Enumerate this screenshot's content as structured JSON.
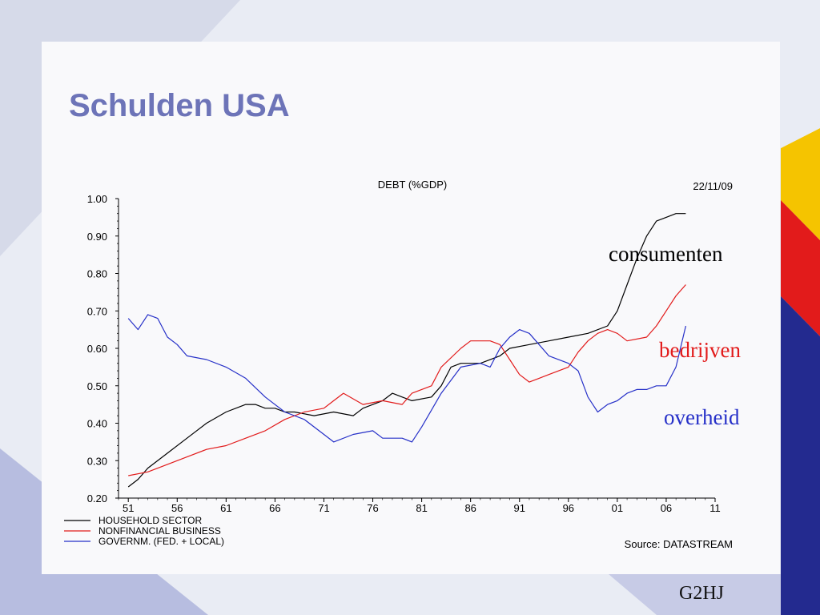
{
  "slide": {
    "title": "Schulden USA",
    "footer": "G2HJ",
    "colors": {
      "title": "#6d74b8",
      "background": "#e9ecf4",
      "accent_yellow": "#f5c400",
      "accent_red": "#e21b1b",
      "accent_blue": "#232a8f"
    }
  },
  "annotations": {
    "household": "consumenten",
    "business": "bedrijven",
    "government": "overheid"
  },
  "chart_data": {
    "type": "line",
    "title": "DEBT (%GDP)",
    "date": "22/11/09",
    "source": "Source: DATASTREAM",
    "xlabel": "",
    "ylabel": "",
    "xlim": [
      1950,
      2011
    ],
    "ylim": [
      0.2,
      1.0
    ],
    "x_ticks": [
      51,
      56,
      61,
      66,
      71,
      76,
      81,
      86,
      91,
      96,
      1,
      6,
      11
    ],
    "x_tick_labels": [
      "51",
      "56",
      "61",
      "66",
      "71",
      "76",
      "81",
      "86",
      "91",
      "96",
      "01",
      "06",
      "11"
    ],
    "y_ticks": [
      0.2,
      0.3,
      0.4,
      0.5,
      0.6,
      0.7,
      0.8,
      0.9,
      1.0
    ],
    "y_tick_labels": [
      "0.20",
      "0.30",
      "0.40",
      "0.50",
      "0.60",
      "0.70",
      "0.80",
      "0.90",
      "1.00"
    ],
    "legend_position": "bottom-left",
    "grid": false,
    "series": [
      {
        "name": "HOUSEHOLD SECTOR",
        "color": "#000000",
        "x": [
          1951,
          1952,
          1953,
          1955,
          1957,
          1959,
          1961,
          1963,
          1964,
          1965,
          1966,
          1967,
          1968,
          1970,
          1972,
          1974,
          1975,
          1977,
          1978,
          1979,
          1980,
          1982,
          1983,
          1984,
          1985,
          1987,
          1989,
          1990,
          1992,
          1994,
          1996,
          1998,
          2000,
          2001,
          2002,
          2003,
          2004,
          2005,
          2006,
          2007,
          2008
        ],
        "values": [
          0.23,
          0.25,
          0.28,
          0.32,
          0.36,
          0.4,
          0.43,
          0.45,
          0.45,
          0.44,
          0.44,
          0.43,
          0.43,
          0.42,
          0.43,
          0.42,
          0.44,
          0.46,
          0.48,
          0.47,
          0.46,
          0.47,
          0.5,
          0.55,
          0.56,
          0.56,
          0.58,
          0.6,
          0.61,
          0.62,
          0.63,
          0.64,
          0.66,
          0.7,
          0.77,
          0.84,
          0.9,
          0.94,
          0.95,
          0.96,
          0.96
        ]
      },
      {
        "name": "NONFINANCIAL BUSINESS",
        "color": "#e21b1b",
        "x": [
          1951,
          1953,
          1955,
          1957,
          1959,
          1961,
          1963,
          1965,
          1967,
          1969,
          1971,
          1972,
          1973,
          1975,
          1977,
          1979,
          1980,
          1982,
          1983,
          1985,
          1986,
          1988,
          1989,
          1990,
          1991,
          1992,
          1993,
          1994,
          1996,
          1997,
          1998,
          1999,
          2000,
          2001,
          2002,
          2004,
          2005,
          2006,
          2007,
          2008
        ],
        "values": [
          0.26,
          0.27,
          0.29,
          0.31,
          0.33,
          0.34,
          0.36,
          0.38,
          0.41,
          0.43,
          0.44,
          0.46,
          0.48,
          0.45,
          0.46,
          0.45,
          0.48,
          0.5,
          0.55,
          0.6,
          0.62,
          0.62,
          0.61,
          0.57,
          0.53,
          0.51,
          0.52,
          0.53,
          0.55,
          0.59,
          0.62,
          0.64,
          0.65,
          0.64,
          0.62,
          0.63,
          0.66,
          0.7,
          0.74,
          0.77
        ]
      },
      {
        "name": "GOVERNM. (FED. + LOCAL)",
        "color": "#2630c8",
        "x": [
          1951,
          1952,
          1953,
          1954,
          1955,
          1956,
          1957,
          1959,
          1961,
          1963,
          1965,
          1967,
          1969,
          1971,
          1972,
          1974,
          1976,
          1977,
          1979,
          1980,
          1981,
          1983,
          1985,
          1987,
          1988,
          1989,
          1990,
          1991,
          1992,
          1993,
          1994,
          1996,
          1997,
          1998,
          1999,
          2000,
          2001,
          2002,
          2003,
          2004,
          2005,
          2006,
          2007,
          2008
        ],
        "values": [
          0.68,
          0.65,
          0.69,
          0.68,
          0.63,
          0.61,
          0.58,
          0.57,
          0.55,
          0.52,
          0.47,
          0.43,
          0.41,
          0.37,
          0.35,
          0.37,
          0.38,
          0.36,
          0.36,
          0.35,
          0.39,
          0.48,
          0.55,
          0.56,
          0.55,
          0.6,
          0.63,
          0.65,
          0.64,
          0.61,
          0.58,
          0.56,
          0.54,
          0.47,
          0.43,
          0.45,
          0.46,
          0.48,
          0.49,
          0.49,
          0.5,
          0.5,
          0.55,
          0.66
        ]
      }
    ]
  }
}
